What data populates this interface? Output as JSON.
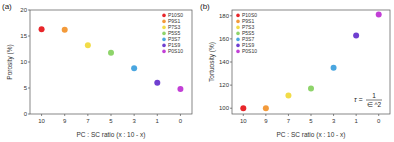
{
  "chart_data": [
    {
      "type": "scatter",
      "title": "(a)",
      "x_label": "PC : SC ratio (x : 10 - x)",
      "y_label": "Porosity (%)",
      "categories": [
        "10",
        "9",
        "7",
        "5",
        "3",
        "1",
        "0"
      ],
      "series": [
        {
          "name": "P10S0",
          "color": "#e8262a",
          "values": [
            16.3,
            null,
            null,
            null,
            null,
            null,
            null
          ]
        },
        {
          "name": "P9S1",
          "color": "#f39a3a",
          "values": [
            null,
            16.2,
            null,
            null,
            null,
            null,
            null
          ]
        },
        {
          "name": "P7S3",
          "color": "#f2dc48",
          "values": [
            null,
            null,
            13.2,
            null,
            null,
            null,
            null
          ]
        },
        {
          "name": "P5S5",
          "color": "#8ed46a",
          "values": [
            null,
            null,
            null,
            11.8,
            null,
            null,
            null
          ]
        },
        {
          "name": "P3S7",
          "color": "#4aa6e0",
          "values": [
            null,
            null,
            null,
            null,
            8.8,
            null,
            null
          ]
        },
        {
          "name": "P1S9",
          "color": "#6f3fd0",
          "values": [
            null,
            null,
            null,
            null,
            null,
            6.0,
            null
          ]
        },
        {
          "name": "P0S10",
          "color": "#c23fd6",
          "values": [
            null,
            null,
            null,
            null,
            null,
            null,
            4.8
          ]
        }
      ],
      "ylim": [
        0,
        20
      ],
      "yticks": [
        0,
        5,
        10,
        15,
        20
      ],
      "grid": false,
      "legend": "upper-right",
      "marker": "circle"
    },
    {
      "type": "scatter",
      "title": "(b)",
      "x_label": "PC : SC ratio (x : 10 - x)",
      "y_label": "Tortuosity (%)",
      "categories": [
        "10",
        "9",
        "7",
        "5",
        "3",
        "1",
        "0"
      ],
      "series": [
        {
          "name": "P10S0",
          "color": "#e8262a",
          "values": [
            100,
            null,
            null,
            null,
            null,
            null,
            null
          ]
        },
        {
          "name": "P9S1",
          "color": "#f39a3a",
          "values": [
            null,
            100,
            null,
            null,
            null,
            null,
            null
          ]
        },
        {
          "name": "P7S3",
          "color": "#f2dc48",
          "values": [
            null,
            null,
            111,
            null,
            null,
            null,
            null
          ]
        },
        {
          "name": "P5S5",
          "color": "#8ed46a",
          "values": [
            null,
            null,
            null,
            117,
            null,
            null,
            null
          ]
        },
        {
          "name": "P3S7",
          "color": "#4aa6e0",
          "values": [
            null,
            null,
            null,
            null,
            135,
            null,
            null
          ]
        },
        {
          "name": "P1S9",
          "color": "#6f3fd0",
          "values": [
            null,
            null,
            null,
            null,
            null,
            163,
            null
          ]
        },
        {
          "name": "P0S10",
          "color": "#c23fd6",
          "values": [
            null,
            null,
            null,
            null,
            null,
            null,
            181
          ]
        }
      ],
      "ylim": [
        95,
        185
      ],
      "yticks": [
        100,
        120,
        140,
        160,
        180
      ],
      "grid": false,
      "legend": "upper-left",
      "marker": "circle",
      "annotation": {
        "lhs": "τ =",
        "numerator": "1",
        "denominator": "∈ ^2"
      }
    }
  ]
}
